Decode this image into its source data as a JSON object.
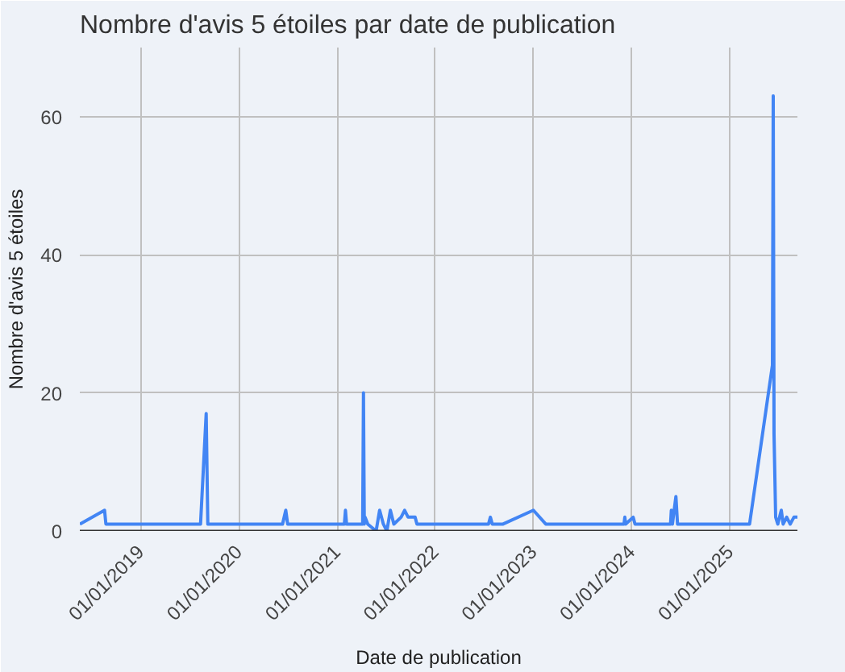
{
  "chart_data": {
    "type": "line",
    "title": "Nombre d'avis 5 étoiles par date de publication",
    "xlabel": "Date de publication",
    "ylabel": "Nombre d'avis 5 étoiles",
    "x": [
      "2018-05-20",
      "2018-08-20",
      "2018-08-25",
      "2019-08-12",
      "2019-09-02",
      "2019-09-08",
      "2020-06-12",
      "2020-06-24",
      "2020-07-01",
      "2021-01-28",
      "2021-02-01",
      "2021-02-05",
      "2021-04-06",
      "2021-04-09",
      "2021-04-12",
      "2021-04-15",
      "2021-04-25",
      "2021-05-26",
      "2021-06-08",
      "2021-06-22",
      "2021-07-05",
      "2021-07-18",
      "2021-07-31",
      "2021-08-27",
      "2021-09-09",
      "2021-09-22",
      "2021-10-18",
      "2021-10-25",
      "2022-07-18",
      "2022-07-25",
      "2022-08-01",
      "2022-09-10",
      "2023-01-01",
      "2023-02-16",
      "2023-12-04",
      "2023-12-07",
      "2023-12-10",
      "2024-01-07",
      "2024-01-14",
      "2024-05-25",
      "2024-05-28",
      "2024-06-01",
      "2024-06-14",
      "2024-06-20",
      "2025-03-15",
      "2025-06-08",
      "2025-06-11",
      "2025-06-14",
      "2025-06-20",
      "2025-06-28",
      "2025-07-11",
      "2025-07-18",
      "2025-07-31",
      "2025-08-13",
      "2025-08-27",
      "2025-09-09"
    ],
    "series": [
      {
        "color": "#4285f4",
        "values": [
          1,
          3,
          1,
          1,
          17,
          1,
          1,
          3,
          1,
          1,
          3,
          1,
          1,
          20,
          1,
          2,
          1,
          0,
          3,
          1,
          0,
          3,
          1,
          2,
          3,
          2,
          2,
          1,
          1,
          2,
          1,
          1,
          3,
          1,
          1,
          2,
          1,
          2,
          1,
          1,
          3,
          1,
          5,
          1,
          1,
          24,
          63,
          14,
          2,
          1,
          3,
          1,
          2,
          1,
          2,
          2
        ]
      }
    ],
    "xlim": [
      "2018-05-20",
      "2025-09-09"
    ],
    "xticks": [
      {
        "value": "2019-01-01",
        "label": "01/01/2019"
      },
      {
        "value": "2020-01-01",
        "label": "01/01/2020"
      },
      {
        "value": "2021-01-01",
        "label": "01/01/2021"
      },
      {
        "value": "2022-01-01",
        "label": "01/01/2022"
      },
      {
        "value": "2023-01-01",
        "label": "01/01/2023"
      },
      {
        "value": "2024-01-01",
        "label": "01/01/2024"
      },
      {
        "value": "2025-01-01",
        "label": "01/01/2025"
      }
    ],
    "ylim": [
      0,
      70
    ],
    "yticks": [
      0,
      20,
      40,
      60
    ],
    "grid": true,
    "line_style": "solid"
  }
}
